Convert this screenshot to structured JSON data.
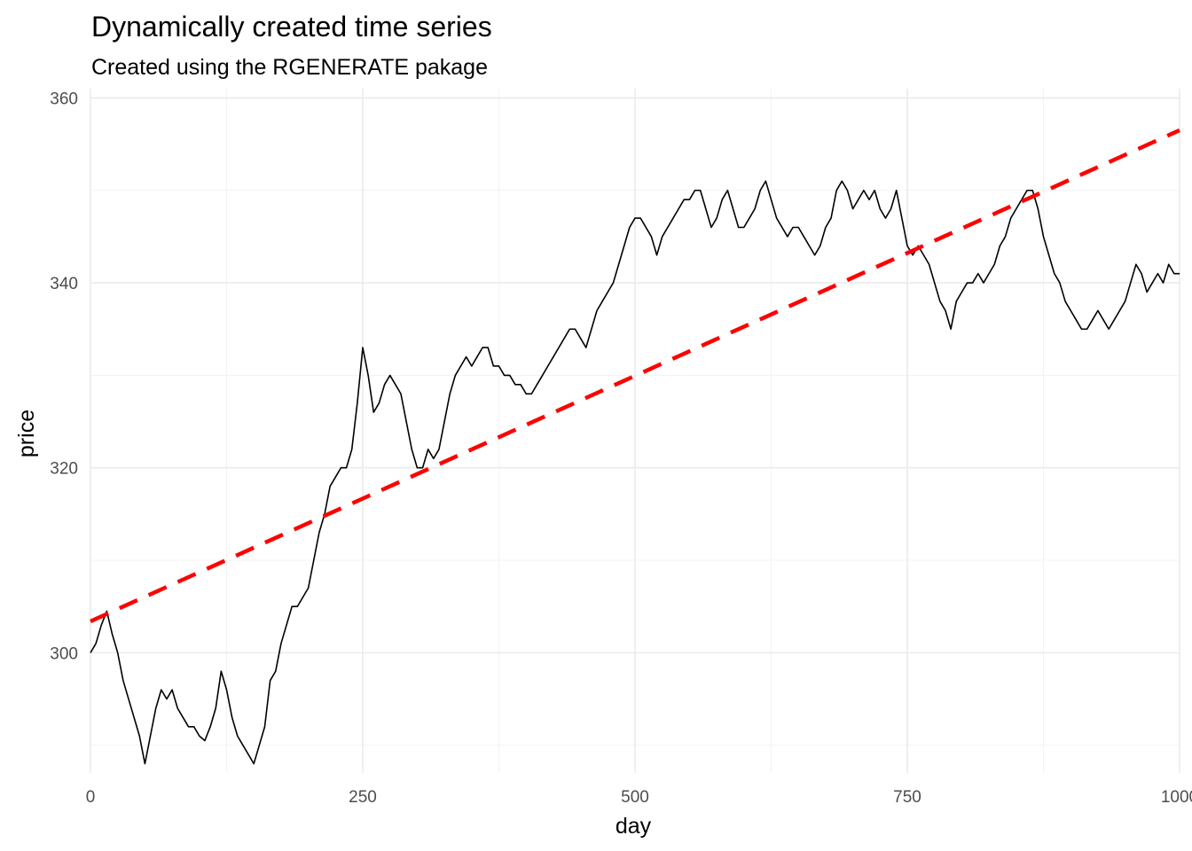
{
  "chart_data": {
    "type": "line",
    "title": "Dynamically created time series",
    "subtitle": "Created using the RGENERATE pakage",
    "xlabel": "day",
    "ylabel": "price",
    "xlim": [
      0,
      1000
    ],
    "ylim": [
      287,
      361
    ],
    "x_ticks": [
      0,
      250,
      500,
      750,
      1000
    ],
    "y_ticks": [
      300,
      320,
      340,
      360
    ],
    "grid": true,
    "legend": "none",
    "series": [
      {
        "style": "solid",
        "color": "#000000",
        "x": [
          0,
          5,
          10,
          15,
          20,
          25,
          30,
          35,
          40,
          45,
          50,
          55,
          60,
          65,
          70,
          75,
          80,
          85,
          90,
          95,
          100,
          105,
          110,
          115,
          120,
          125,
          130,
          135,
          140,
          145,
          150,
          155,
          160,
          165,
          170,
          175,
          180,
          185,
          190,
          195,
          200,
          205,
          210,
          215,
          220,
          225,
          230,
          235,
          240,
          245,
          250,
          255,
          260,
          265,
          270,
          275,
          280,
          285,
          290,
          295,
          300,
          305,
          310,
          315,
          320,
          325,
          330,
          335,
          340,
          345,
          350,
          355,
          360,
          365,
          370,
          375,
          380,
          385,
          390,
          395,
          400,
          405,
          410,
          415,
          420,
          425,
          430,
          435,
          440,
          445,
          450,
          455,
          460,
          465,
          470,
          475,
          480,
          485,
          490,
          495,
          500,
          505,
          510,
          515,
          520,
          525,
          530,
          535,
          540,
          545,
          550,
          555,
          560,
          565,
          570,
          575,
          580,
          585,
          590,
          595,
          600,
          605,
          610,
          615,
          620,
          625,
          630,
          635,
          640,
          645,
          650,
          655,
          660,
          665,
          670,
          675,
          680,
          685,
          690,
          695,
          700,
          705,
          710,
          715,
          720,
          725,
          730,
          735,
          740,
          745,
          750,
          755,
          760,
          765,
          770,
          775,
          780,
          785,
          790,
          795,
          800,
          805,
          810,
          815,
          820,
          825,
          830,
          835,
          840,
          845,
          850,
          855,
          860,
          865,
          870,
          875,
          880,
          885,
          890,
          895,
          900,
          905,
          910,
          915,
          920,
          925,
          930,
          935,
          940,
          945,
          950,
          955,
          960,
          965,
          970,
          975,
          980,
          985,
          990,
          995,
          1000
        ],
        "y": [
          300,
          301,
          303,
          304.5,
          302,
          300,
          297,
          295,
          293,
          291,
          288,
          291,
          294,
          296,
          295,
          296,
          294,
          293,
          292,
          292,
          291,
          290.5,
          292,
          294,
          298,
          296,
          293,
          291,
          290,
          289,
          288,
          290,
          292,
          297,
          298,
          301,
          303,
          305,
          305,
          306,
          307,
          310,
          313,
          315,
          318,
          319,
          320,
          320,
          322,
          327,
          333,
          330,
          326,
          327,
          329,
          330,
          329,
          328,
          325,
          322,
          320,
          320,
          322,
          321,
          322,
          325,
          328,
          330,
          331,
          332,
          331,
          332,
          333,
          333,
          331,
          331,
          330,
          330,
          329,
          329,
          328,
          328,
          329,
          330,
          331,
          332,
          333,
          334,
          335,
          335,
          334,
          333,
          335,
          337,
          338,
          339,
          340,
          342,
          344,
          346,
          347,
          347,
          346,
          345,
          343,
          345,
          346,
          347,
          348,
          349,
          349,
          350,
          350,
          348,
          346,
          347,
          349,
          350,
          348,
          346,
          346,
          347,
          348,
          350,
          351,
          349,
          347,
          346,
          345,
          346,
          346,
          345,
          344,
          343,
          344,
          346,
          347,
          350,
          351,
          350,
          348,
          349,
          350,
          349,
          350,
          348,
          347,
          348,
          350,
          347,
          344,
          343,
          344,
          343,
          342,
          340,
          338,
          337,
          335,
          338,
          339,
          340,
          340,
          341,
          340,
          341,
          342,
          344,
          345,
          347,
          348,
          349,
          350,
          350,
          348,
          345,
          343,
          341,
          340,
          338,
          337,
          336,
          335,
          335,
          336,
          337,
          336,
          335,
          336,
          337,
          338,
          340,
          342,
          341,
          339,
          340,
          341,
          340,
          342,
          341,
          341
        ]
      },
      {
        "style": "dashed",
        "color": "#ff0000",
        "x": [
          0,
          1000
        ],
        "y": [
          303.4,
          356.5
        ]
      }
    ]
  }
}
